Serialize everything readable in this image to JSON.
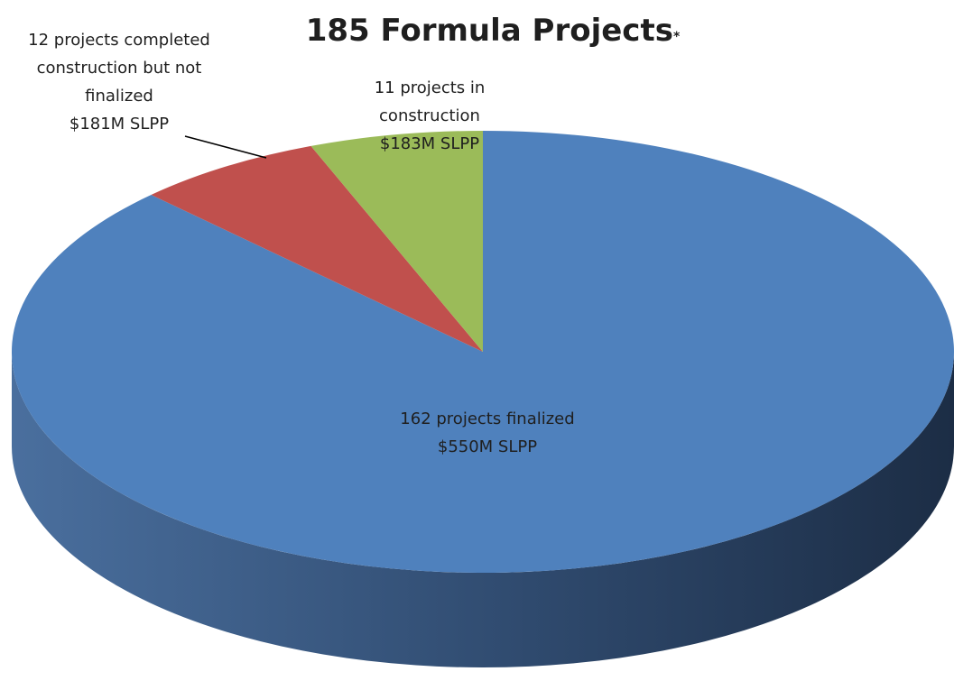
{
  "chart_data": {
    "type": "pie",
    "title": "185 Formula Projects",
    "title_note": "*",
    "values": [
      162,
      12,
      11
    ],
    "labels": [
      [
        "162 projects finalized",
        "$550M SLPP"
      ],
      [
        "12 projects completed",
        "construction but not",
        "finalized",
        "$181M SLPP"
      ],
      [
        "11 projects in",
        "construction",
        "$183M SLPP"
      ]
    ],
    "colors": [
      "#4f81bd",
      "#c0504d",
      "#9bbb59"
    ]
  }
}
